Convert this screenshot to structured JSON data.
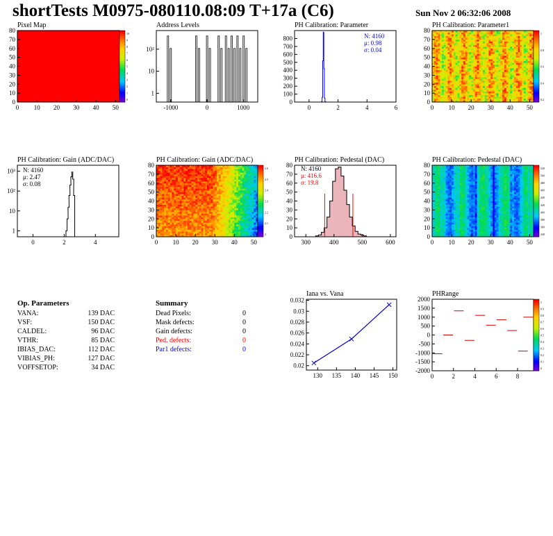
{
  "header": {
    "title": "shortTests M0975-080110.08:09 T+17a (C6)",
    "date": "Sun Nov  2 06:32:06 2008"
  },
  "panels": {
    "pixel_map": {
      "title": "Pixel Map",
      "zlabels": [
        "10",
        "9",
        "8",
        "7",
        "6",
        "5",
        "4",
        "3",
        "2",
        "1",
        "0"
      ]
    },
    "address_levels": {
      "title": "Address Levels"
    },
    "ph_param": {
      "title": "PH Calibration: Parameter",
      "stats": [
        "N: 4160",
        "μ: 0.98",
        "σ: 0.04"
      ]
    },
    "ph_param1": {
      "title": "PH Calibration: Parameter1"
    },
    "gain_hist": {
      "title": "PH Calibration: Gain (ADC/DAC)",
      "stats": [
        "N: 4160",
        "μ: 2.47",
        "σ: 0.08"
      ]
    },
    "gain_map": {
      "title": "PH Calibration: Gain (ADC/DAC)"
    },
    "ped_hist": {
      "title": "PH Calibration: Pedestal (DAC)",
      "stats": [
        "N: 4160",
        "μ: 416.6",
        "σ: 19.8"
      ]
    },
    "ped_map": {
      "title": "PH Calibration: Pedestal (DAC)"
    },
    "iana": {
      "title": "Iana vs. Vana"
    },
    "phrange": {
      "title": "PHRange"
    }
  },
  "op_params": {
    "title": "Op. Parameters",
    "rows": [
      {
        "name": "VANA:",
        "value": "139 DAC"
      },
      {
        "name": "VSF:",
        "value": "150 DAC"
      },
      {
        "name": "CALDEL:",
        "value": "96 DAC"
      },
      {
        "name": "VTHR:",
        "value": "85 DAC"
      },
      {
        "name": "IBIAS_DAC:",
        "value": "112 DAC"
      },
      {
        "name": "VIBIAS_PH:",
        "value": "127 DAC"
      },
      {
        "name": "VOFFSETOP:",
        "value": "34 DAC"
      }
    ]
  },
  "summary": {
    "title": "Summary",
    "rows": [
      {
        "name": "Dead Pixels:",
        "value": "0",
        "color": "#000000"
      },
      {
        "name": "Mask defects:",
        "value": "0",
        "color": "#000000"
      },
      {
        "name": "Gain defects:",
        "value": "0",
        "color": "#000000"
      },
      {
        "name": "Ped. defects:",
        "value": "0",
        "color": "#ff0000"
      },
      {
        "name": "Par1 defects:",
        "value": "0",
        "color": "#0000ff"
      }
    ]
  },
  "chart_data": [
    {
      "type": "heatmap",
      "title": "Pixel Map",
      "x_range": [
        0,
        52
      ],
      "y_range": [
        0,
        80
      ],
      "z_range": [
        0,
        10
      ],
      "uniform_value": 10,
      "x_ticks": [
        0,
        10,
        20,
        30,
        40,
        50
      ],
      "y_ticks": [
        0,
        10,
        20,
        30,
        40,
        50,
        60,
        70,
        80
      ]
    },
    {
      "type": "bar",
      "title": "Address Levels",
      "xlim": [
        -1400,
        1400
      ],
      "ylog": true,
      "ylim": [
        0.4,
        700
      ],
      "x_ticks": [
        -1000,
        0,
        1000
      ],
      "y_ticks": [
        "1",
        "10",
        "10²"
      ],
      "peaks": [
        {
          "x": -1040,
          "value": 400
        },
        {
          "x": -260,
          "value": 400
        },
        {
          "x": 40,
          "value": 400
        },
        {
          "x": 360,
          "value": 400
        },
        {
          "x": 560,
          "value": 400
        },
        {
          "x": 720,
          "value": 400
        },
        {
          "x": 880,
          "value": 400
        },
        {
          "x": 1050,
          "value": 400
        }
      ]
    },
    {
      "type": "bar",
      "title": "PH Calibration: Parameter",
      "xlim": [
        -1,
        6
      ],
      "ylim": [
        0,
        900
      ],
      "x_ticks": [
        0,
        2,
        4,
        6
      ],
      "y_ticks": [
        0,
        100,
        200,
        300,
        400,
        500,
        600,
        700,
        800
      ],
      "x": [
        0.88,
        0.92,
        0.96,
        1.0,
        1.04,
        1.08,
        1.12
      ],
      "values": [
        5,
        60,
        520,
        880,
        420,
        50,
        5
      ],
      "stats": {
        "N": 4160,
        "mean": 0.98,
        "rms": 0.04
      }
    },
    {
      "type": "heatmap",
      "title": "PH Calibration: Parameter1",
      "x_range": [
        0,
        52
      ],
      "y_range": [
        0,
        80
      ],
      "x_ticks": [
        0,
        10,
        20,
        30,
        40,
        50
      ],
      "y_ticks": [
        0,
        10,
        20,
        30,
        40,
        50,
        60,
        70,
        80
      ],
      "z_ticks": [
        "1",
        "0.8",
        "0.6",
        "0.4",
        "0.2"
      ]
    },
    {
      "type": "bar",
      "title": "PH Calibration: Gain (ADC/DAC)",
      "xlim": [
        -1,
        5.5
      ],
      "ylog": true,
      "ylim": [
        0.5,
        2000
      ],
      "x_ticks": [
        0,
        2,
        4
      ],
      "y_ticks": [
        "1",
        "10",
        "10²",
        "10³"
      ],
      "x": [
        2.15,
        2.22,
        2.28,
        2.34,
        2.4,
        2.46,
        2.52,
        2.58,
        2.64
      ],
      "values": [
        1,
        4,
        15,
        60,
        200,
        520,
        900,
        400,
        60
      ],
      "stats": {
        "N": 4160,
        "mean": 2.47,
        "rms": 0.08
      }
    },
    {
      "type": "heatmap",
      "title": "PH Calibration: Gain (ADC/DAC)",
      "x_range": [
        0,
        52
      ],
      "y_range": [
        0,
        80
      ],
      "x_ticks": [
        0,
        10,
        20,
        30,
        40,
        50
      ],
      "y_ticks": [
        0,
        10,
        20,
        30,
        40,
        50,
        60,
        70,
        80
      ],
      "z_ticks": [
        "2.6",
        "2.5",
        "2.4",
        "2.3",
        "2.2",
        "2.1",
        "2"
      ]
    },
    {
      "type": "bar",
      "title": "PH Calibration: Pedestal (DAC)",
      "xlim": [
        260,
        620
      ],
      "ylim": [
        0,
        80
      ],
      "x_ticks": [
        300,
        400,
        500,
        600
      ],
      "y_ticks": [
        0,
        10,
        20,
        30,
        40,
        50,
        60,
        70,
        80
      ],
      "x": [
        340,
        350,
        360,
        370,
        380,
        390,
        400,
        410,
        420,
        430,
        440,
        450,
        460,
        470,
        480,
        490,
        500,
        510
      ],
      "values": [
        1,
        2,
        5,
        10,
        22,
        40,
        62,
        76,
        78,
        68,
        52,
        36,
        22,
        12,
        6,
        3,
        2,
        1
      ],
      "cut_lines": [
        367,
        467
      ],
      "stats": {
        "N": 4160,
        "mean": 416.6,
        "rms": 19.8
      }
    },
    {
      "type": "heatmap",
      "title": "PH Calibration: Pedestal (DAC)",
      "x_range": [
        0,
        52
      ],
      "y_range": [
        0,
        80
      ],
      "x_ticks": [
        0,
        10,
        20,
        30,
        40,
        50
      ],
      "y_ticks": [
        0,
        10,
        20,
        30,
        40,
        50,
        60,
        70,
        80
      ],
      "z_ticks": [
        "520",
        "500",
        "480",
        "460",
        "440",
        "420",
        "400",
        "380",
        "360",
        "340"
      ]
    },
    {
      "type": "line",
      "title": "Iana vs. Vana",
      "xlim": [
        127,
        151
      ],
      "ylim": [
        0.0192,
        0.0322
      ],
      "x_ticks": [
        130,
        135,
        140,
        145,
        150
      ],
      "y_ticks": [
        "0.02",
        "0.022",
        "0.024",
        "0.026",
        "0.028",
        "0.03",
        "0.032"
      ],
      "x": [
        129,
        139,
        149
      ],
      "y": [
        0.0205,
        0.0249,
        0.0312
      ]
    },
    {
      "type": "scatter",
      "title": "PHRange",
      "xlim": [
        0,
        9.5
      ],
      "ylim": [
        -2000,
        2000
      ],
      "x_ticks": [
        0,
        2,
        4,
        6,
        8
      ],
      "y_ticks": [
        "2000",
        "1500",
        "1000",
        "500",
        "0",
        "-500",
        "-1000",
        "-1500",
        "-2000"
      ],
      "z_ticks": [
        "1",
        "0.9",
        "0.8",
        "0.7",
        "0.6",
        "0.5",
        "0.4",
        "0.3",
        "0.2",
        "0.1",
        "0"
      ],
      "segments": [
        {
          "x": 0.5,
          "y": -1050
        },
        {
          "x": 1.5,
          "y": 0
        },
        {
          "x": 2.5,
          "y": 1350
        },
        {
          "x": 3.5,
          "y": -300
        },
        {
          "x": 4.5,
          "y": 1100
        },
        {
          "x": 5.5,
          "y": 550
        },
        {
          "x": 6.5,
          "y": 850
        },
        {
          "x": 7.5,
          "y": 250
        },
        {
          "x": 8.5,
          "y": -900
        },
        {
          "x": 9.0,
          "y": 1000
        }
      ]
    }
  ]
}
